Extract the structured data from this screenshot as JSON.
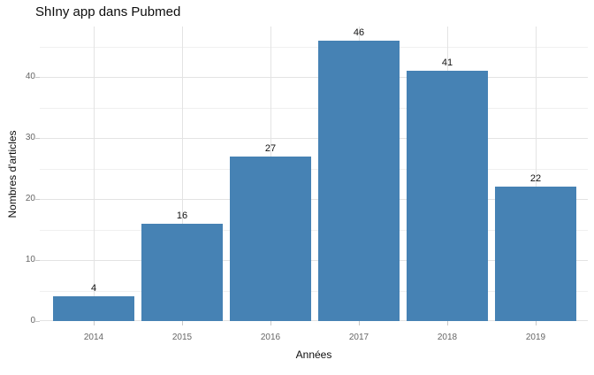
{
  "chart_data": {
    "type": "bar",
    "title": "ShIny app dans Pubmed",
    "xlabel": "Années",
    "ylabel": "Nombres d'articles",
    "categories": [
      "2014",
      "2015",
      "2016",
      "2017",
      "2018",
      "2019"
    ],
    "values": [
      4,
      16,
      27,
      46,
      41,
      22
    ],
    "bar_labels": [
      "4",
      "16",
      "27",
      "46",
      "41",
      "22"
    ],
    "ylim": [
      0,
      48.3
    ],
    "yticks_major": [
      0,
      10,
      20,
      30,
      40
    ],
    "yticks_minor": [
      5,
      15,
      25,
      35,
      45
    ],
    "grid": "major and minor horizontal, major vertical at category centers",
    "legend": "none",
    "colors": {
      "bar_fill": "#4682B4",
      "background": "#ffffff",
      "grid_major": "#e3e3e3",
      "grid_minor": "#f0f0f0",
      "tick_mark": "#c9c9c9",
      "tick_label": "#666666",
      "text": "#0d0d0d"
    }
  }
}
